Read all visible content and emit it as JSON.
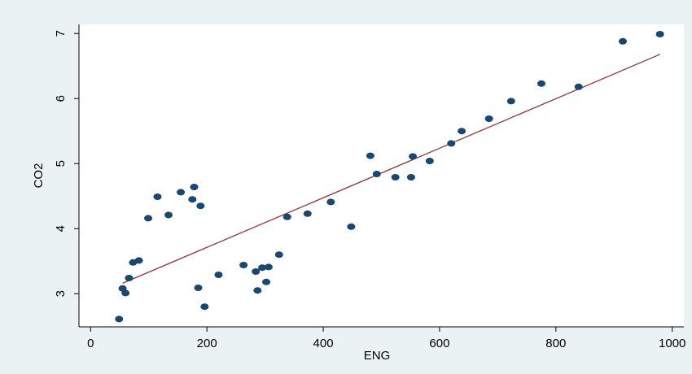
{
  "chart_data": {
    "type": "scatter",
    "x_label": "ENG",
    "y_label": "CO2",
    "x": [
      49,
      55,
      60,
      66,
      73,
      83,
      99,
      115,
      134,
      155,
      175,
      178,
      185,
      189,
      196,
      220,
      263,
      284,
      287,
      295,
      302,
      306,
      324,
      338,
      373,
      413,
      448,
      481,
      492,
      524,
      551,
      554,
      583,
      620,
      638,
      685,
      723,
      775,
      839,
      915,
      979
    ],
    "values": [
      2.61,
      3.08,
      3.01,
      3.24,
      3.48,
      3.51,
      4.16,
      4.49,
      4.21,
      4.56,
      4.45,
      4.64,
      3.09,
      4.35,
      2.8,
      3.29,
      3.44,
      3.34,
      3.05,
      3.4,
      3.18,
      3.41,
      3.6,
      4.18,
      4.23,
      4.41,
      4.03,
      5.12,
      4.84,
      4.79,
      4.79,
      5.11,
      5.04,
      5.31,
      5.5,
      5.69,
      5.96,
      6.23,
      6.18,
      6.88,
      6.99
    ],
    "color": "#1a476f",
    "fit_line": {
      "x": [
        55,
        979
      ],
      "values": [
        3.16,
        6.68
      ],
      "color": "#90353b"
    },
    "xlim": [
      -20,
      1020
    ],
    "ylim": [
      2.49,
      7.14
    ],
    "xticks": [
      0,
      200,
      400,
      600,
      800,
      1000
    ],
    "yticks": [
      3,
      4,
      5,
      6,
      7
    ]
  }
}
